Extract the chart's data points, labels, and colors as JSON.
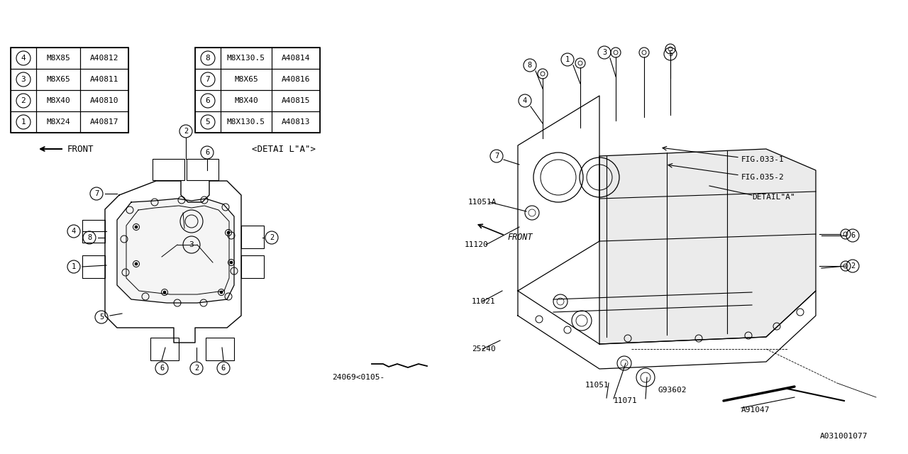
{
  "bg_color": "#ffffff",
  "line_color": "#000000",
  "table_left": {
    "rows": [
      [
        "1",
        "M8X24",
        "A40817"
      ],
      [
        "2",
        "M8X40",
        "A40810"
      ],
      [
        "3",
        "M8X65",
        "A40811"
      ],
      [
        "4",
        "M8X85",
        "A40812"
      ]
    ]
  },
  "table_right": {
    "rows": [
      [
        "5",
        "M8X130.5",
        "A40813"
      ],
      [
        "6",
        "M8X40",
        "A40815"
      ],
      [
        "7",
        "M8X65",
        "A40816"
      ],
      [
        "8",
        "M8X130.5",
        "A40814"
      ]
    ]
  }
}
